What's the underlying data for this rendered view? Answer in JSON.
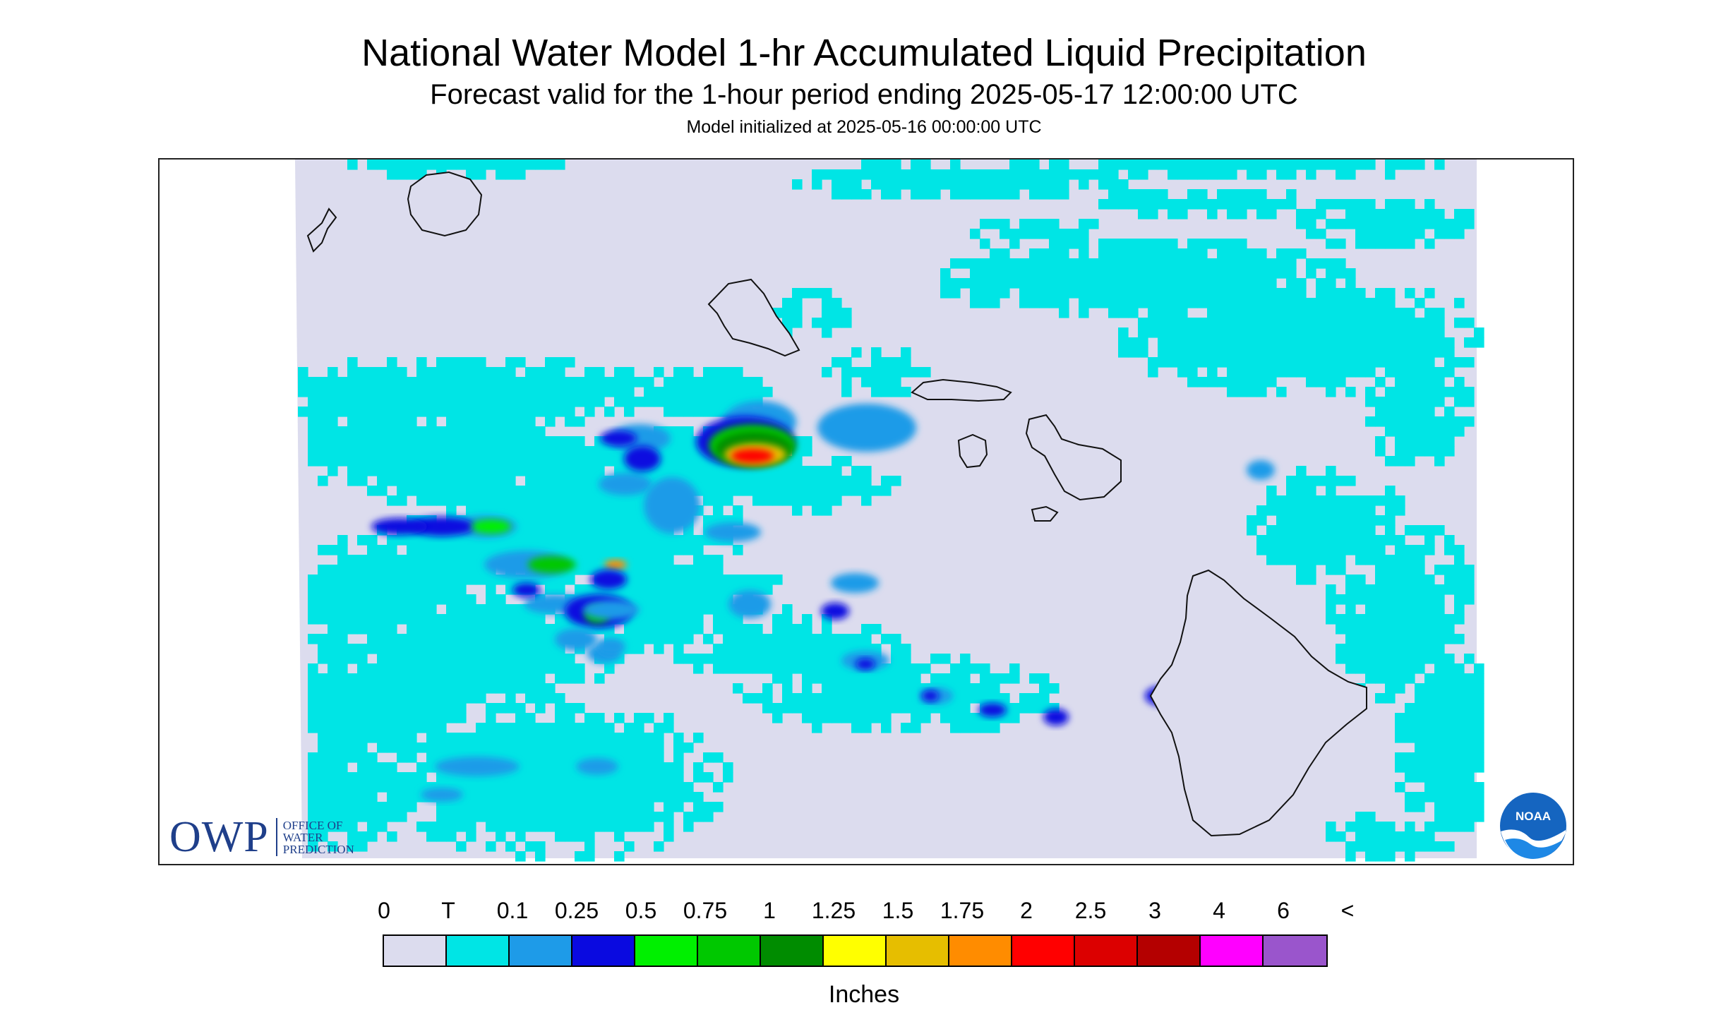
{
  "header": {
    "title": "National Water Model 1-hr Accumulated Liquid Precipitation",
    "subtitle": "Forecast valid for the 1-hour period ending 2025-05-17 12:00:00 UTC",
    "init_line": "Model initialized at 2025-05-16 00:00:00 UTC"
  },
  "logos": {
    "owp_mark": "OWP",
    "owp_lines": [
      "OFFICE OF",
      "WATER",
      "PREDICTION"
    ],
    "noaa_mark": "NOAA"
  },
  "legend": {
    "labels": [
      "0",
      "T",
      "0.1",
      "0.25",
      "0.5",
      "0.75",
      "1",
      "1.25",
      "1.5",
      "1.75",
      "2",
      "2.5",
      "3",
      "4",
      "6",
      "<"
    ],
    "colors": [
      "#dcdcee",
      "#00e5e5",
      "#1e9be8",
      "#0a0ae0",
      "#00f000",
      "#00c800",
      "#008c00",
      "#ffff00",
      "#e6be00",
      "#ff8c00",
      "#ff0000",
      "#dc0000",
      "#b40000",
      "#ff00ff",
      "#9a55cc"
    ],
    "units": "Inches"
  },
  "map": {
    "background_color": "#dcdcee",
    "outline_color": "#111111",
    "islands": [
      "Niihau",
      "Kauai",
      "Oahu",
      "Molokai",
      "Lanai",
      "Maui",
      "Kahoolawe",
      "Hawaii"
    ]
  }
}
